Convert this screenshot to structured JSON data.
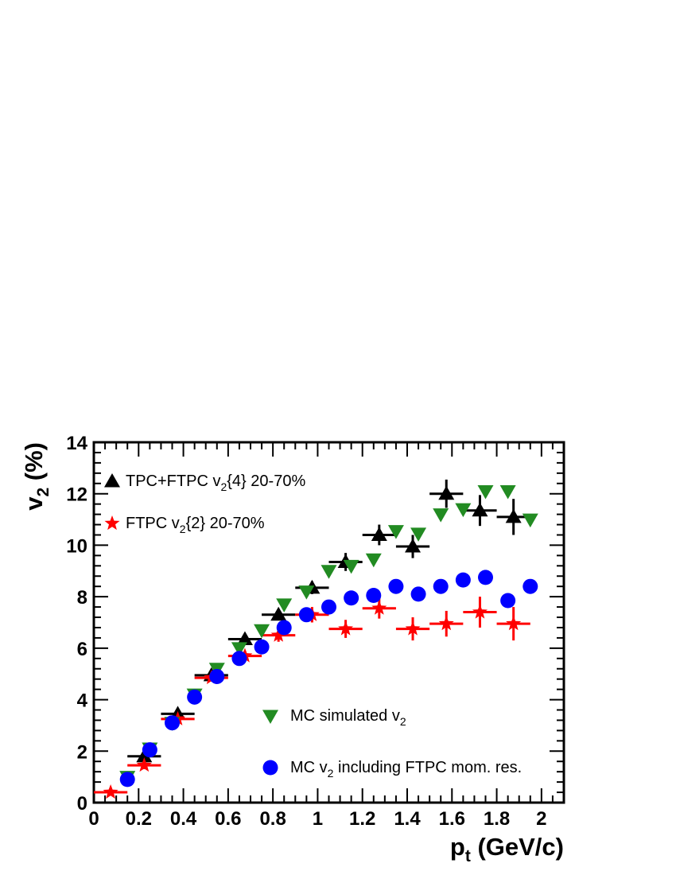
{
  "chart_data": {
    "type": "scatter",
    "xlabel": "p_t (GeV/c)",
    "ylabel": "v_2 (%)",
    "xlim": [
      0,
      2.1
    ],
    "ylim": [
      0,
      14
    ],
    "x_ticks": [
      "0",
      "0.2",
      "0.4",
      "0.6",
      "0.8",
      "1",
      "1.2",
      "1.4",
      "1.6",
      "1.8",
      "2"
    ],
    "y_ticks": [
      "0",
      "2",
      "4",
      "6",
      "8",
      "10",
      "12",
      "14"
    ],
    "grid": false,
    "series": [
      {
        "name": "TPC+FTPC v2{4} 20-70%",
        "marker": "triangle-up",
        "color": "#000000",
        "points": [
          {
            "x": 0.225,
            "y": 1.8,
            "xerr": 0.075,
            "yerr": 0.25
          },
          {
            "x": 0.375,
            "y": 3.45,
            "xerr": 0.075,
            "yerr": 0.15
          },
          {
            "x": 0.525,
            "y": 4.95,
            "xerr": 0.075,
            "yerr": 0.15
          },
          {
            "x": 0.675,
            "y": 6.35,
            "xerr": 0.075,
            "yerr": 0.2
          },
          {
            "x": 0.825,
            "y": 7.3,
            "xerr": 0.075,
            "yerr": 0.2
          },
          {
            "x": 0.975,
            "y": 8.35,
            "xerr": 0.075,
            "yerr": 0.25
          },
          {
            "x": 1.125,
            "y": 9.35,
            "xerr": 0.075,
            "yerr": 0.35
          },
          {
            "x": 1.275,
            "y": 10.4,
            "xerr": 0.075,
            "yerr": 0.4
          },
          {
            "x": 1.425,
            "y": 9.95,
            "xerr": 0.075,
            "yerr": 0.45
          },
          {
            "x": 1.575,
            "y": 12.0,
            "xerr": 0.075,
            "yerr": 0.55
          },
          {
            "x": 1.725,
            "y": 11.35,
            "xerr": 0.075,
            "yerr": 0.6
          },
          {
            "x": 1.875,
            "y": 11.1,
            "xerr": 0.075,
            "yerr": 0.7
          }
        ]
      },
      {
        "name": "FTPC v2{2} 20-70%",
        "marker": "star",
        "color": "#ff0000",
        "points": [
          {
            "x": 0.075,
            "y": 0.4,
            "xerr": 0.075,
            "yerr": 0.1
          },
          {
            "x": 0.225,
            "y": 1.45,
            "xerr": 0.075,
            "yerr": 0.15
          },
          {
            "x": 0.375,
            "y": 3.25,
            "xerr": 0.075,
            "yerr": 0.15
          },
          {
            "x": 0.525,
            "y": 4.85,
            "xerr": 0.075,
            "yerr": 0.15
          },
          {
            "x": 0.675,
            "y": 5.7,
            "xerr": 0.075,
            "yerr": 0.2
          },
          {
            "x": 0.825,
            "y": 6.5,
            "xerr": 0.075,
            "yerr": 0.25
          },
          {
            "x": 0.975,
            "y": 7.3,
            "xerr": 0.075,
            "yerr": 0.3
          },
          {
            "x": 1.125,
            "y": 6.75,
            "xerr": 0.075,
            "yerr": 0.35
          },
          {
            "x": 1.275,
            "y": 7.55,
            "xerr": 0.075,
            "yerr": 0.4
          },
          {
            "x": 1.425,
            "y": 6.75,
            "xerr": 0.075,
            "yerr": 0.45
          },
          {
            "x": 1.575,
            "y": 6.95,
            "xerr": 0.075,
            "yerr": 0.5
          },
          {
            "x": 1.725,
            "y": 7.4,
            "xerr": 0.075,
            "yerr": 0.6
          },
          {
            "x": 1.875,
            "y": 6.95,
            "xerr": 0.075,
            "yerr": 0.65
          }
        ]
      },
      {
        "name": "MC simulated v2",
        "marker": "triangle-down",
        "color": "#228b22",
        "points": [
          {
            "x": 0.15,
            "y": 1.0
          },
          {
            "x": 0.25,
            "y": 2.1
          },
          {
            "x": 0.35,
            "y": 3.1
          },
          {
            "x": 0.45,
            "y": 4.2
          },
          {
            "x": 0.55,
            "y": 5.2
          },
          {
            "x": 0.65,
            "y": 6.0
          },
          {
            "x": 0.75,
            "y": 6.7
          },
          {
            "x": 0.85,
            "y": 7.7
          },
          {
            "x": 0.95,
            "y": 8.2
          },
          {
            "x": 1.05,
            "y": 9.0
          },
          {
            "x": 1.15,
            "y": 9.2
          },
          {
            "x": 1.25,
            "y": 9.45
          },
          {
            "x": 1.35,
            "y": 10.55
          },
          {
            "x": 1.45,
            "y": 10.45
          },
          {
            "x": 1.55,
            "y": 11.2
          },
          {
            "x": 1.65,
            "y": 11.4
          },
          {
            "x": 1.75,
            "y": 12.1
          },
          {
            "x": 1.85,
            "y": 12.1
          },
          {
            "x": 1.95,
            "y": 11.0
          }
        ]
      },
      {
        "name": "MC v2 including FTPC mom. res.",
        "marker": "circle",
        "color": "#0000ff",
        "points": [
          {
            "x": 0.15,
            "y": 0.9
          },
          {
            "x": 0.25,
            "y": 2.05
          },
          {
            "x": 0.35,
            "y": 3.1
          },
          {
            "x": 0.45,
            "y": 4.1
          },
          {
            "x": 0.55,
            "y": 4.9
          },
          {
            "x": 0.65,
            "y": 5.6
          },
          {
            "x": 0.75,
            "y": 6.05
          },
          {
            "x": 0.85,
            "y": 6.8
          },
          {
            "x": 0.95,
            "y": 7.3
          },
          {
            "x": 1.05,
            "y": 7.6
          },
          {
            "x": 1.15,
            "y": 7.95
          },
          {
            "x": 1.25,
            "y": 8.05
          },
          {
            "x": 1.35,
            "y": 8.4
          },
          {
            "x": 1.45,
            "y": 8.1
          },
          {
            "x": 1.55,
            "y": 8.4
          },
          {
            "x": 1.65,
            "y": 8.65
          },
          {
            "x": 1.75,
            "y": 8.75
          },
          {
            "x": 1.85,
            "y": 7.85
          },
          {
            "x": 1.95,
            "y": 8.4
          }
        ]
      }
    ],
    "legend": [
      {
        "marker": "triangle-up",
        "color": "#000000",
        "text": "TPC+FTPC v",
        "sub": "2",
        "suffix": "{4} 20-70%"
      },
      {
        "marker": "star",
        "color": "#ff0000",
        "text": "FTPC v",
        "sub": "2",
        "suffix": "{2} 20-70%"
      },
      {
        "marker": "triangle-down",
        "color": "#228b22",
        "text": "MC simulated v",
        "sub": "2",
        "suffix": ""
      },
      {
        "marker": "circle",
        "color": "#0000ff",
        "text": "MC v",
        "sub": "2",
        "suffix": " including FTPC mom. res."
      }
    ]
  }
}
